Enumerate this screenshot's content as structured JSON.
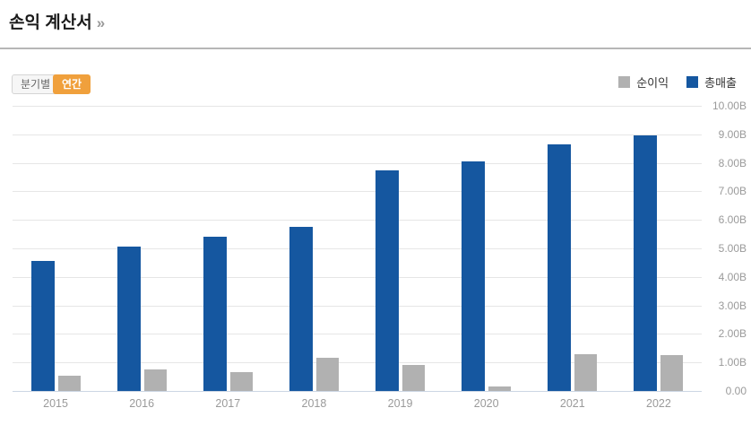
{
  "header": {
    "title": "손익 계산서",
    "chevron": "»"
  },
  "controls": {
    "quarterly_label": "분기별",
    "annual_label": "연간",
    "selected": "연간",
    "selected_color": "#f0a03c"
  },
  "legend": {
    "items": [
      {
        "label": "순이익",
        "color": "#b1b1b1"
      },
      {
        "label": "총매출",
        "color": "#1557a0"
      }
    ]
  },
  "chart_data": {
    "type": "bar",
    "title": "손익 계산서",
    "categories": [
      "2015",
      "2016",
      "2017",
      "2018",
      "2019",
      "2020",
      "2021",
      "2022"
    ],
    "series": [
      {
        "name": "총매출",
        "color": "#1557a0",
        "values": [
          4.55,
          5.05,
          5.4,
          5.75,
          7.75,
          8.05,
          8.65,
          8.95
        ]
      },
      {
        "name": "순이익",
        "color": "#b1b1b1",
        "values": [
          0.55,
          0.75,
          0.65,
          1.15,
          0.9,
          0.15,
          1.3,
          1.25
        ]
      }
    ],
    "unit": "B",
    "ylim": [
      0,
      10
    ],
    "ytick_step": 1,
    "ytick_labels": [
      "0.00",
      "1.00B",
      "2.00B",
      "3.00B",
      "4.00B",
      "5.00B",
      "6.00B",
      "7.00B",
      "8.00B",
      "9.00B",
      "10.00B"
    ],
    "yaxis_side": "right",
    "grid": true,
    "legend_position": "top-right",
    "colors": {
      "gridline": "#e6e6e6",
      "baseline": "#ccd6e4",
      "axis_text": "#9a9a9a"
    }
  }
}
